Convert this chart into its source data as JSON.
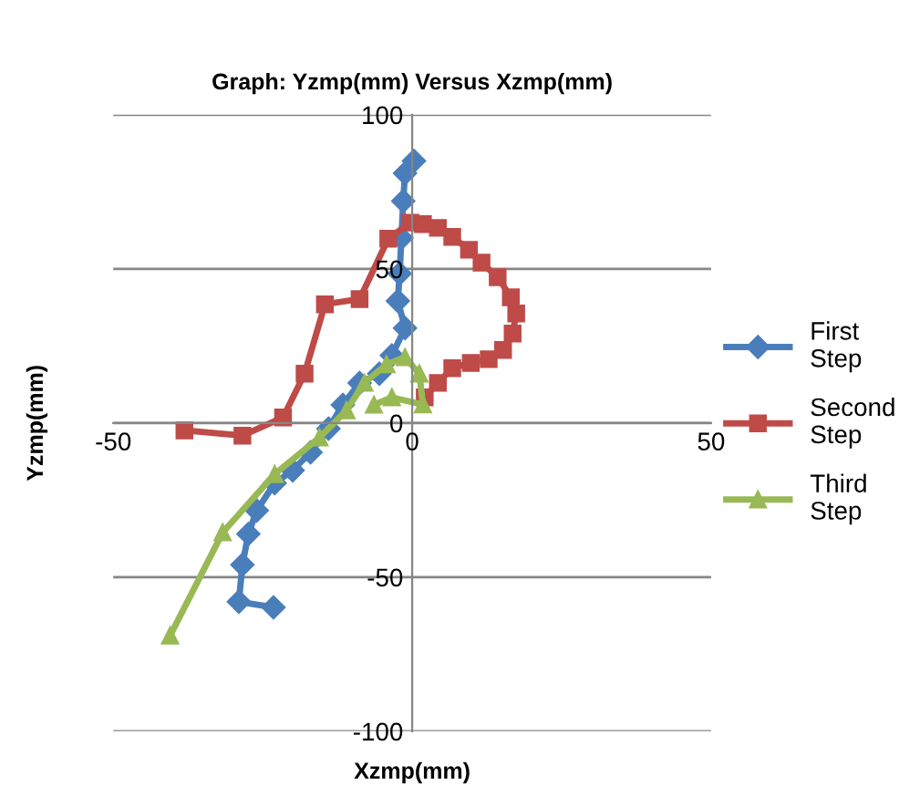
{
  "chart_data": {
    "type": "line",
    "title": "Graph: Yzmp(mm) Versus Xzmp(mm)",
    "xlabel": "Xzmp(mm)",
    "ylabel": "Yzmp(mm)",
    "xlim": [
      -50,
      50
    ],
    "xticks": [
      -50,
      0,
      50
    ],
    "ylim": [
      -100,
      100
    ],
    "yticks": [
      -100,
      -50,
      0,
      50,
      100
    ],
    "grid": "y",
    "legend": "right",
    "series": [
      {
        "name": "First Step",
        "color": "#4a7ebb",
        "marker": "diamond",
        "x": [
          0.3,
          -1.2,
          -1.5,
          -1.8,
          -2.1,
          -2.4,
          -1.2,
          -3.4,
          -5.5,
          -8.8,
          -11.6,
          -14,
          -17,
          -20,
          -23,
          -26,
          -27.4,
          -28.4,
          -29,
          -23.2
        ],
        "values": [
          85,
          81,
          72,
          60,
          48.5,
          39.6,
          30.8,
          21.9,
          16,
          13,
          5.9,
          -1.8,
          -9.5,
          -15.4,
          -19.5,
          -28.4,
          -36,
          -46,
          -58,
          -59.8
        ]
      },
      {
        "name": "Second Step",
        "color": "#be4b48",
        "marker": "square",
        "x": [
          -38.1,
          -28.4,
          -21.6,
          -18,
          -14.6,
          -8.8,
          -4,
          -0.3,
          1.8,
          4.3,
          6.7,
          9.5,
          11.6,
          14.3,
          16.5,
          17.4,
          16.8,
          15.2,
          12.8,
          9.8,
          6.7,
          4.3,
          2.1
        ],
        "values": [
          -2.4,
          -4.1,
          1.8,
          16,
          38.5,
          40.2,
          59.8,
          65,
          64.5,
          63.3,
          60.4,
          56.2,
          52,
          47.3,
          40.8,
          35.5,
          29,
          23.7,
          20.7,
          19.5,
          17.8,
          13,
          8.3
        ]
      },
      {
        "name": "Third Step",
        "color": "#98b954",
        "marker": "triangle",
        "x": [
          -40.5,
          -31.7,
          -23,
          -15.5,
          -11,
          -8,
          -4.3,
          -1.2,
          1.2,
          1.8,
          -3.4,
          -6.4
        ],
        "values": [
          -69,
          -35.5,
          -16.6,
          -4.7,
          4.1,
          13,
          19,
          21.3,
          16,
          6,
          8.3,
          5.9
        ]
      }
    ]
  }
}
